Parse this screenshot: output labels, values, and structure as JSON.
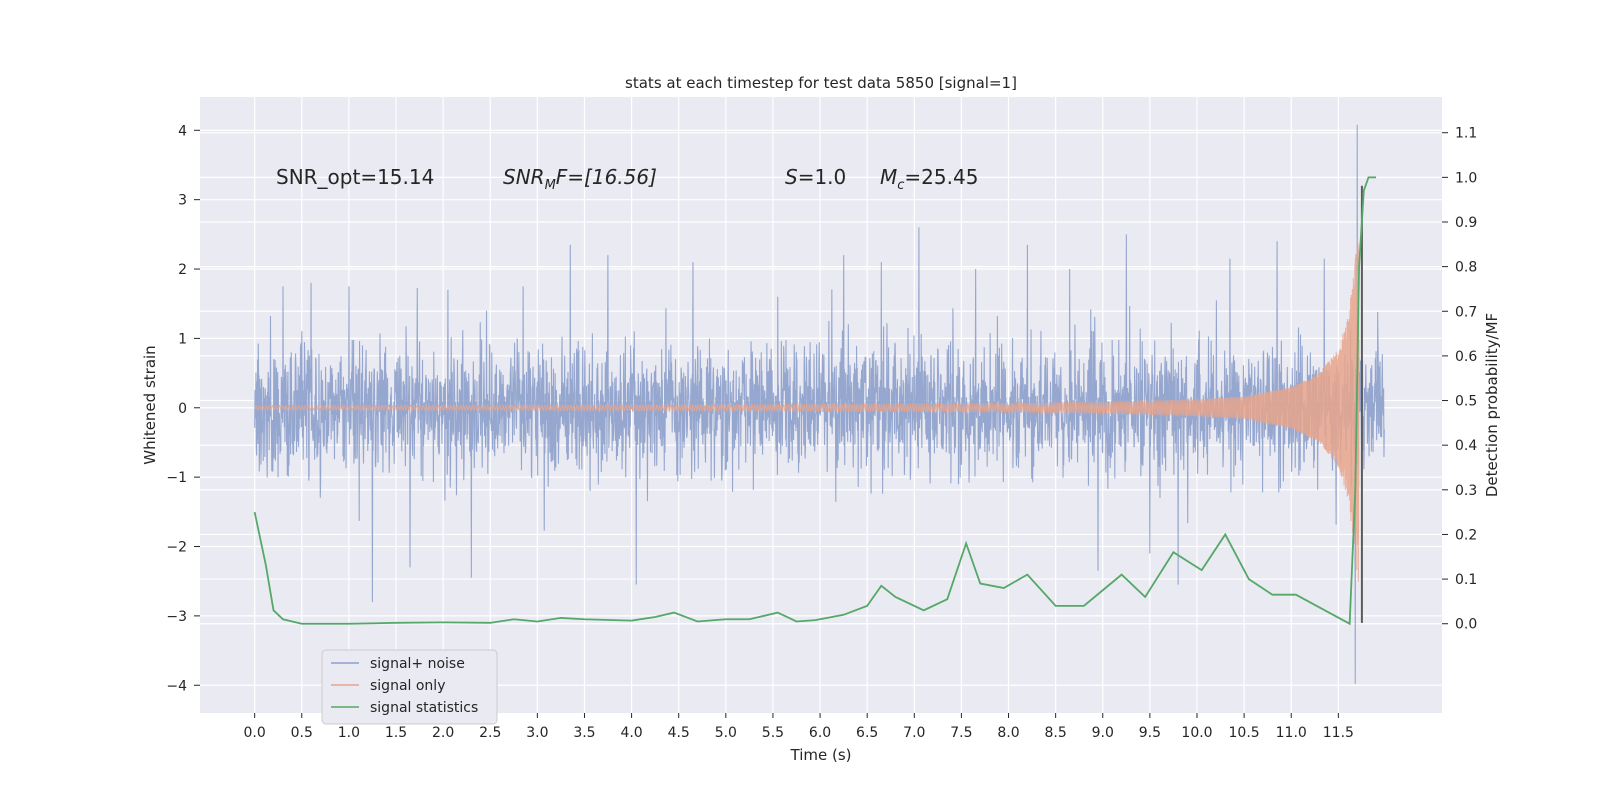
{
  "chart_data": {
    "type": "line",
    "title": "stats at each timestep for test data 5850 [signal=1]",
    "xlabel": "Time (s)",
    "ylabel": "Whitened strain",
    "ylabel_right": "Detection probability/MF",
    "xlim": [
      -0.58,
      12.6
    ],
    "ylim": [
      -4.4,
      4.48
    ],
    "ylim_right": [
      -0.2,
      1.18
    ],
    "grid": true,
    "legend_position": "lower-left",
    "x_ticks": [
      "0.0",
      "0.5",
      "1.0",
      "1.5",
      "2.0",
      "2.5",
      "3.0",
      "3.5",
      "4.0",
      "4.5",
      "5.0",
      "5.5",
      "6.0",
      "6.5",
      "7.0",
      "7.5",
      "8.0",
      "8.5",
      "9.0",
      "9.5",
      "10.0",
      "10.5",
      "11.0",
      "11.5"
    ],
    "y_ticks": [
      "4",
      "3",
      "2",
      "1",
      "0",
      "−1",
      "−2",
      "−3",
      "−4"
    ],
    "y_ticks_right": [
      "1.1",
      "1.0",
      "0.9",
      "0.8",
      "0.7",
      "0.6",
      "0.5",
      "0.4",
      "0.3",
      "0.2",
      "0.1",
      "0.0"
    ],
    "annotations": {
      "snr_opt": "SNR_opt=15.14",
      "snr_mf_main": "SNR",
      "snr_mf_sub": "M",
      "snr_mf_rest": "F=[16.56]",
      "s_main": "S",
      "s_rest": "=1.0",
      "mc_main": "M",
      "mc_sub": "c",
      "mc_rest": "=25.45"
    },
    "series": [
      {
        "name": "signal+ noise",
        "color": "#8da0cb",
        "x_range": [
          0.0,
          11.99
        ],
        "typical_band": [
          -1.3,
          1.3
        ],
        "max": 4.08,
        "min": -3.98,
        "spikes": [
          [
            0.3,
            1.75
          ],
          [
            0.6,
            1.8
          ],
          [
            1.0,
            1.75
          ],
          [
            1.25,
            -2.8
          ],
          [
            1.65,
            -2.3
          ],
          [
            2.05,
            1.7
          ],
          [
            2.3,
            -2.45
          ],
          [
            2.85,
            1.75
          ],
          [
            3.35,
            2.35
          ],
          [
            3.75,
            2.2
          ],
          [
            4.05,
            -2.55
          ],
          [
            4.65,
            2.1
          ],
          [
            5.55,
            1.6
          ],
          [
            6.25,
            2.2
          ],
          [
            6.65,
            2.1
          ],
          [
            7.05,
            2.6
          ],
          [
            7.65,
            2.0
          ],
          [
            8.2,
            2.35
          ],
          [
            8.65,
            2.0
          ],
          [
            8.95,
            -2.35
          ],
          [
            9.25,
            2.5
          ],
          [
            9.5,
            -2.1
          ],
          [
            9.8,
            -2.55
          ],
          [
            10.35,
            2.15
          ],
          [
            10.85,
            2.4
          ],
          [
            11.35,
            2.15
          ],
          [
            11.7,
            4.08
          ],
          [
            11.68,
            -3.98
          ]
        ]
      },
      {
        "name": "signal only",
        "color": "#e8a48c",
        "description_values": "chirp envelope amplitude",
        "x": [
          0.0,
          2.0,
          4.0,
          6.0,
          8.0,
          9.0,
          10.0,
          10.5,
          11.0,
          11.3,
          11.5,
          11.6,
          11.65,
          11.7,
          11.72
        ],
        "envelope": [
          0.03,
          0.035,
          0.04,
          0.05,
          0.06,
          0.08,
          0.12,
          0.16,
          0.3,
          0.5,
          0.85,
          1.3,
          1.8,
          2.4,
          2.6
        ]
      },
      {
        "name": "signal statistics",
        "color": "#55a868",
        "axis": "right",
        "x": [
          0.0,
          0.12,
          0.2,
          0.3,
          0.4,
          0.5,
          1.0,
          1.5,
          2.0,
          2.5,
          2.75,
          3.0,
          3.25,
          3.5,
          4.0,
          4.25,
          4.45,
          4.7,
          5.0,
          5.25,
          5.55,
          5.75,
          5.95,
          6.25,
          6.5,
          6.65,
          6.8,
          7.1,
          7.35,
          7.55,
          7.7,
          7.95,
          8.2,
          8.5,
          8.8,
          9.2,
          9.45,
          9.75,
          10.05,
          10.3,
          10.55,
          10.8,
          11.05,
          11.4,
          11.62,
          11.68,
          11.72,
          11.77,
          11.82,
          11.9
        ],
        "values": [
          0.25,
          0.13,
          0.03,
          0.01,
          0.005,
          0.0,
          0.0,
          0.002,
          0.003,
          0.002,
          0.01,
          0.005,
          0.013,
          0.01,
          0.007,
          0.015,
          0.025,
          0.005,
          0.01,
          0.01,
          0.025,
          0.005,
          0.008,
          0.02,
          0.04,
          0.085,
          0.06,
          0.03,
          0.055,
          0.18,
          0.09,
          0.08,
          0.11,
          0.04,
          0.04,
          0.11,
          0.06,
          0.16,
          0.12,
          0.2,
          0.1,
          0.065,
          0.065,
          0.025,
          0.0,
          0.3,
          0.8,
          0.97,
          1.0,
          1.0
        ]
      }
    ],
    "marker_line": {
      "color": "#5b5b5b",
      "x": 11.75,
      "y_range": [
        -3.1,
        3.2
      ]
    }
  }
}
